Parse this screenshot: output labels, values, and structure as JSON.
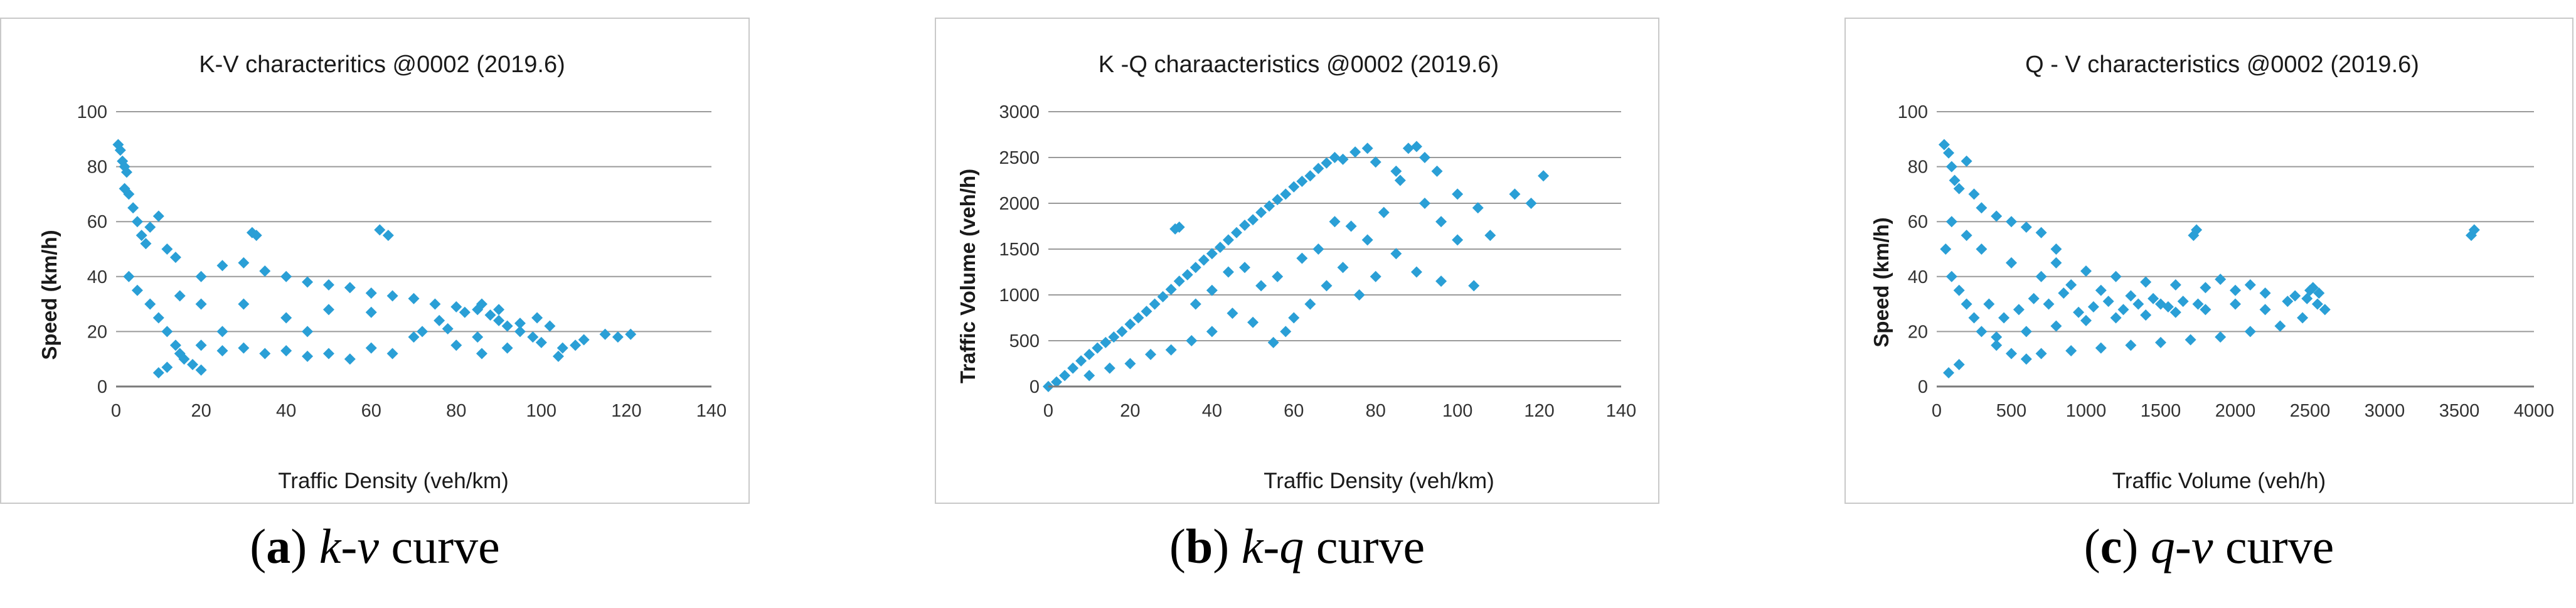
{
  "captions": [
    {
      "letter": "a",
      "curve": "k-v",
      "suffix": " curve"
    },
    {
      "letter": "b",
      "curve": "k-q",
      "suffix": " curve"
    },
    {
      "letter": "c",
      "curve": "q-v",
      "suffix": " curve"
    }
  ],
  "marker_color": "#2a9fd6",
  "chart_data": [
    {
      "type": "scatter",
      "title": "K-V characteritics @0002 (2019.6)",
      "xlabel": "Traffic Density (veh/km)",
      "ylabel": "Speed (km/h)",
      "xlim": [
        0,
        140
      ],
      "ylim": [
        0,
        100
      ],
      "xticks": [
        "0",
        "20",
        "40",
        "60",
        "80",
        "100",
        "120",
        "140"
      ],
      "yticks": [
        "0",
        "20",
        "40",
        "60",
        "80",
        "100"
      ],
      "grid": "horizontal",
      "series": [
        {
          "points": [
            [
              0.5,
              88
            ],
            [
              1,
              86
            ],
            [
              1.5,
              82
            ],
            [
              2,
              80
            ],
            [
              2.5,
              78
            ],
            [
              2,
              72
            ],
            [
              3,
              70
            ],
            [
              4,
              65
            ],
            [
              5,
              60
            ],
            [
              6,
              55
            ],
            [
              7,
              52
            ],
            [
              8,
              58
            ],
            [
              10,
              62
            ],
            [
              12,
              50
            ],
            [
              14,
              47
            ],
            [
              3,
              40
            ],
            [
              5,
              35
            ],
            [
              8,
              30
            ],
            [
              10,
              25
            ],
            [
              12,
              20
            ],
            [
              14,
              15
            ],
            [
              16,
              10
            ],
            [
              18,
              8
            ],
            [
              20,
              6
            ],
            [
              10,
              5
            ],
            [
              12,
              7
            ],
            [
              15,
              12
            ],
            [
              20,
              40
            ],
            [
              25,
              44
            ],
            [
              30,
              45
            ],
            [
              35,
              42
            ],
            [
              40,
              40
            ],
            [
              45,
              38
            ],
            [
              50,
              37
            ],
            [
              55,
              36
            ],
            [
              60,
              34
            ],
            [
              65,
              33
            ],
            [
              70,
              32
            ],
            [
              75,
              30
            ],
            [
              80,
              29
            ],
            [
              85,
              28
            ],
            [
              88,
              26
            ],
            [
              90,
              24
            ],
            [
              92,
              22
            ],
            [
              95,
              20
            ],
            [
              98,
              18
            ],
            [
              100,
              16
            ],
            [
              102,
              22
            ],
            [
              105,
              14
            ],
            [
              110,
              17
            ],
            [
              118,
              18
            ],
            [
              121,
              19
            ],
            [
              104,
              11
            ],
            [
              86,
              12
            ],
            [
              80,
              15
            ],
            [
              76,
              24
            ],
            [
              70,
              18
            ],
            [
              65,
              12
            ],
            [
              60,
              14
            ],
            [
              55,
              10
            ],
            [
              50,
              12
            ],
            [
              45,
              11
            ],
            [
              40,
              13
            ],
            [
              35,
              12
            ],
            [
              30,
              14
            ],
            [
              25,
              13
            ],
            [
              20,
              15
            ],
            [
              33,
              55
            ],
            [
              32,
              56
            ],
            [
              62,
              57
            ],
            [
              64,
              55
            ],
            [
              72,
              20
            ],
            [
              78,
              21
            ],
            [
              82,
              27
            ],
            [
              86,
              30
            ],
            [
              90,
              28
            ],
            [
              95,
              23
            ],
            [
              99,
              25
            ],
            [
              85,
              18
            ],
            [
              92,
              14
            ],
            [
              108,
              15
            ],
            [
              115,
              19
            ],
            [
              40,
              25
            ],
            [
              50,
              28
            ],
            [
              60,
              27
            ],
            [
              30,
              30
            ],
            [
              20,
              30
            ],
            [
              15,
              33
            ],
            [
              25,
              20
            ],
            [
              45,
              20
            ]
          ]
        }
      ]
    },
    {
      "type": "scatter",
      "title": "K -Q charaacteristics @0002 (2019.6)",
      "xlabel": "Traffic Density (veh/km)",
      "ylabel": "Traffic Volume (veh/h)",
      "xlim": [
        0,
        140
      ],
      "ylim": [
        0,
        3000
      ],
      "xticks": [
        "0",
        "20",
        "40",
        "60",
        "80",
        "100",
        "120",
        "140"
      ],
      "yticks": [
        "0",
        "500",
        "1000",
        "1500",
        "2000",
        "2500",
        "3000"
      ],
      "grid": "horizontal",
      "series": [
        {
          "points": [
            [
              0,
              0
            ],
            [
              2,
              50
            ],
            [
              4,
              120
            ],
            [
              6,
              200
            ],
            [
              8,
              280
            ],
            [
              10,
              350
            ],
            [
              12,
              420
            ],
            [
              14,
              480
            ],
            [
              16,
              540
            ],
            [
              18,
              600
            ],
            [
              20,
              680
            ],
            [
              22,
              750
            ],
            [
              24,
              820
            ],
            [
              26,
              900
            ],
            [
              28,
              980
            ],
            [
              30,
              1060
            ],
            [
              32,
              1150
            ],
            [
              34,
              1220
            ],
            [
              36,
              1300
            ],
            [
              38,
              1380
            ],
            [
              40,
              1450
            ],
            [
              42,
              1520
            ],
            [
              44,
              1600
            ],
            [
              46,
              1680
            ],
            [
              48,
              1760
            ],
            [
              50,
              1820
            ],
            [
              52,
              1900
            ],
            [
              54,
              1970
            ],
            [
              56,
              2040
            ],
            [
              58,
              2100
            ],
            [
              60,
              2180
            ],
            [
              62,
              2240
            ],
            [
              64,
              2300
            ],
            [
              66,
              2380
            ],
            [
              68,
              2440
            ],
            [
              70,
              2500
            ],
            [
              72,
              2480
            ],
            [
              75,
              2560
            ],
            [
              78,
              2600
            ],
            [
              80,
              2450
            ],
            [
              85,
              2350
            ],
            [
              88,
              2600
            ],
            [
              90,
              2620
            ],
            [
              92,
              2500
            ],
            [
              95,
              2350
            ],
            [
              100,
              2100
            ],
            [
              105,
              1950
            ],
            [
              108,
              1650
            ],
            [
              114,
              2100
            ],
            [
              118,
              2000
            ],
            [
              121,
              2300
            ],
            [
              104,
              1100
            ],
            [
              96,
              1150
            ],
            [
              90,
              1250
            ],
            [
              85,
              1450
            ],
            [
              80,
              1200
            ],
            [
              76,
              1000
            ],
            [
              72,
              1300
            ],
            [
              68,
              1100
            ],
            [
              64,
              900
            ],
            [
              60,
              750
            ],
            [
              58,
              600
            ],
            [
              55,
              480
            ],
            [
              50,
              700
            ],
            [
              45,
              800
            ],
            [
              40,
              600
            ],
            [
              35,
              500
            ],
            [
              30,
              400
            ],
            [
              25,
              350
            ],
            [
              20,
              250
            ],
            [
              15,
              200
            ],
            [
              10,
              120
            ],
            [
              31,
              1720
            ],
            [
              32,
              1740
            ],
            [
              78,
              1600
            ],
            [
              82,
              1900
            ],
            [
              86,
              2250
            ],
            [
              92,
              2000
            ],
            [
              96,
              1800
            ],
            [
              100,
              1600
            ],
            [
              70,
              1800
            ],
            [
              74,
              1750
            ],
            [
              66,
              1500
            ],
            [
              62,
              1400
            ],
            [
              56,
              1200
            ],
            [
              52,
              1100
            ],
            [
              48,
              1300
            ],
            [
              44,
              1250
            ],
            [
              40,
              1050
            ],
            [
              36,
              900
            ]
          ]
        }
      ]
    },
    {
      "type": "scatter",
      "title": "Q - V characteristics @0002 (2019.6)",
      "xlabel": "Traffic Volume (veh/h)",
      "ylabel": "Speed (km/h)",
      "xlim": [
        0,
        4000
      ],
      "ylim": [
        0,
        100
      ],
      "xticks": [
        "0",
        "500",
        "1000",
        "1500",
        "2000",
        "2500",
        "3000",
        "3500",
        "4000"
      ],
      "yticks": [
        "0",
        "20",
        "40",
        "60",
        "80",
        "100"
      ],
      "grid": "horizontal",
      "series": [
        {
          "points": [
            [
              50,
              88
            ],
            [
              80,
              85
            ],
            [
              100,
              80
            ],
            [
              120,
              75
            ],
            [
              150,
              72
            ],
            [
              200,
              82
            ],
            [
              250,
              70
            ],
            [
              300,
              65
            ],
            [
              400,
              62
            ],
            [
              500,
              60
            ],
            [
              600,
              58
            ],
            [
              700,
              56
            ],
            [
              800,
              50
            ],
            [
              100,
              60
            ],
            [
              60,
              50
            ],
            [
              100,
              40
            ],
            [
              150,
              35
            ],
            [
              200,
              30
            ],
            [
              250,
              25
            ],
            [
              300,
              20
            ],
            [
              400,
              15
            ],
            [
              500,
              12
            ],
            [
              600,
              10
            ],
            [
              80,
              5
            ],
            [
              150,
              8
            ],
            [
              800,
              45
            ],
            [
              1000,
              42
            ],
            [
              1200,
              40
            ],
            [
              1400,
              38
            ],
            [
              1600,
              37
            ],
            [
              1800,
              36
            ],
            [
              2000,
              35
            ],
            [
              2200,
              34
            ],
            [
              2400,
              33
            ],
            [
              2500,
              35
            ],
            [
              2550,
              30
            ],
            [
              2600,
              28
            ],
            [
              2450,
              25
            ],
            [
              2300,
              22
            ],
            [
              2100,
              20
            ],
            [
              1900,
              18
            ],
            [
              1700,
              17
            ],
            [
              1500,
              16
            ],
            [
              1300,
              15
            ],
            [
              1100,
              14
            ],
            [
              900,
              13
            ],
            [
              700,
              12
            ],
            [
              1720,
              55
            ],
            [
              1740,
              57
            ],
            [
              3580,
              55
            ],
            [
              3600,
              57
            ],
            [
              2000,
              30
            ],
            [
              1800,
              28
            ],
            [
              1600,
              27
            ],
            [
              1400,
              26
            ],
            [
              1200,
              25
            ],
            [
              1000,
              24
            ],
            [
              800,
              22
            ],
            [
              600,
              20
            ],
            [
              400,
              18
            ],
            [
              2200,
              28
            ],
            [
              2350,
              31
            ],
            [
              2480,
              32
            ],
            [
              2520,
              36
            ],
            [
              2560,
              34
            ],
            [
              1500,
              30
            ],
            [
              1300,
              33
            ],
            [
              1100,
              35
            ],
            [
              900,
              37
            ],
            [
              700,
              40
            ],
            [
              500,
              45
            ],
            [
              300,
              50
            ],
            [
              200,
              55
            ],
            [
              1900,
              39
            ],
            [
              2100,
              37
            ],
            [
              350,
              30
            ],
            [
              450,
              25
            ],
            [
              550,
              28
            ],
            [
              650,
              32
            ],
            [
              750,
              30
            ],
            [
              850,
              34
            ],
            [
              950,
              27
            ],
            [
              1050,
              29
            ],
            [
              1150,
              31
            ],
            [
              1250,
              28
            ],
            [
              1350,
              30
            ],
            [
              1450,
              32
            ],
            [
              1550,
              29
            ],
            [
              1650,
              31
            ],
            [
              1750,
              30
            ]
          ]
        }
      ]
    }
  ]
}
